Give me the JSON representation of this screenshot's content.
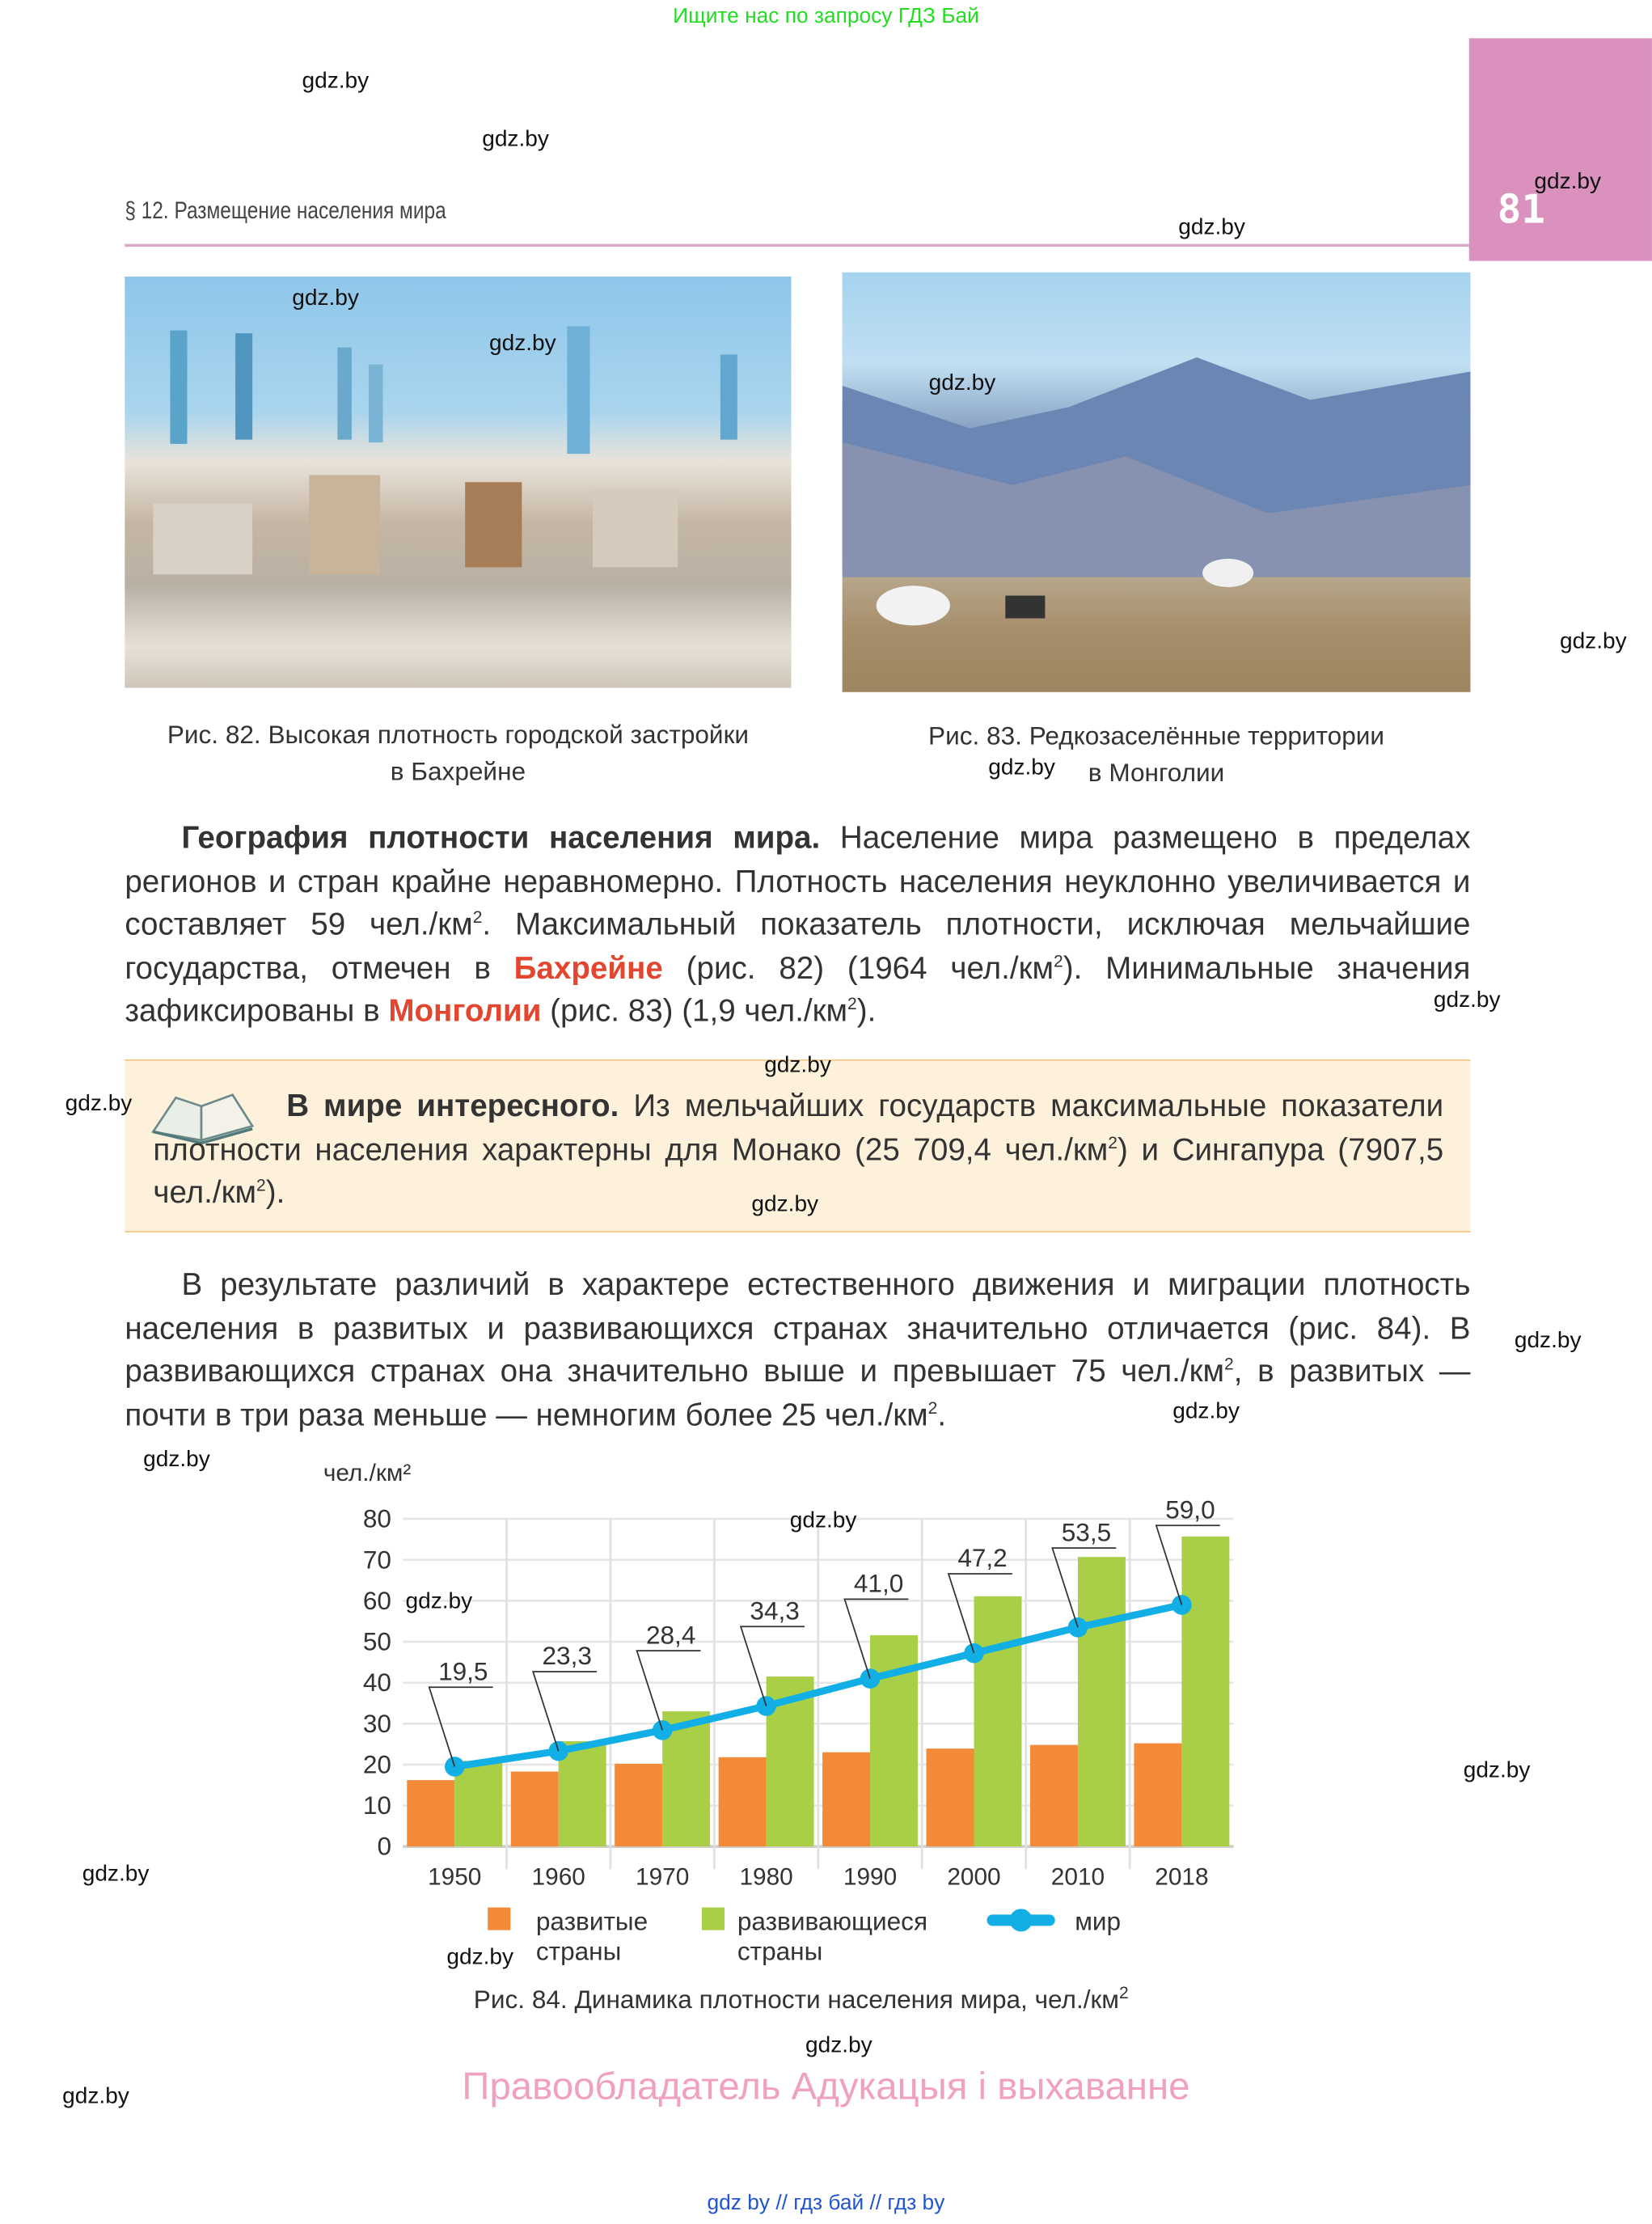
{
  "banner": "Ищите нас по запросу ГДЗ Бай",
  "header": {
    "section": "§ 12. Размещение населения мира",
    "page_number": "81"
  },
  "figures": {
    "fig82_caption_1": "Рис. 82. Высокая плотность городской застройки",
    "fig82_caption_2": "в Бахрейне",
    "fig83_caption_1": "Рис. 83. Редкозаселённые территории",
    "fig83_caption_2": "в Монголии"
  },
  "sup": "2",
  "paragraph1": {
    "heading": "География плотности населения мира.",
    "t1": " Население мира размещено в пределах регионов и стран крайне неравномерно. Плотность населения неуклонно увеличивается и составляет 59 чел./км",
    "t2": ". Максимальный показатель плотности, исключая мельчайшие государства, отмечен в ",
    "red1": "Бахрейне",
    "t3": " (рис. 82) (1964 чел./км",
    "t4": "). Минимальные значения зафиксированы в ",
    "red2": "Монголии",
    "t5": " (рис. 83) (1,9 чел./км",
    "t6": ")."
  },
  "infobox": {
    "icon": "open-book-icon",
    "heading": "В мире интересного.",
    "t1": " Из мельчайших государств максимальные показатели плотности населения характерны для Монако (25 709,4 чел./км",
    "t2": ") и Сингапура (7907,5 чел./км",
    "t3": ")."
  },
  "paragraph2": {
    "t1": "В результате различий в характере естественного движения и миграции плотность населения в развитых и развивающихся странах значительно отличается (рис. 84). В развивающихся странах она значительно выше и превышает 75 чел./км",
    "t2": ", в развитых — почти в три раза меньше — немногим более 25 чел./км",
    "t3": "."
  },
  "chart_data": {
    "type": "bar",
    "ylabel": "чел./км²",
    "ylim": [
      0,
      80
    ],
    "yticks": [
      "0",
      "10",
      "20",
      "30",
      "40",
      "50",
      "60",
      "70",
      "80"
    ],
    "categories": [
      "1950",
      "1960",
      "1970",
      "1980",
      "1990",
      "2000",
      "2010",
      "2018"
    ],
    "grid": true,
    "series": [
      {
        "name": "развитые страны",
        "type": "bar",
        "color": "#f28a38",
        "values": [
          16.2,
          18.3,
          20.2,
          21.8,
          23.0,
          23.9,
          24.8,
          25.2
        ]
      },
      {
        "name": "развивающиеся страны",
        "type": "bar",
        "color": "#a8cf45",
        "values": [
          20.9,
          25.7,
          33.0,
          41.5,
          51.6,
          61.1,
          70.7,
          75.7
        ]
      },
      {
        "name": "мир",
        "type": "line",
        "color": "#12aee6",
        "values": [
          19.5,
          23.3,
          28.4,
          34.3,
          41.0,
          47.2,
          53.5,
          59.0
        ],
        "labels": [
          "19,5",
          "23,3",
          "28,4",
          "34,3",
          "41,0",
          "47,2",
          "53,5",
          "59,0"
        ]
      }
    ],
    "legend": {
      "position": "bottom",
      "items": [
        {
          "line1": "развитые",
          "line2": "страны"
        },
        {
          "line1": "развивающиеся",
          "line2": "страны"
        },
        {
          "line1": "мир",
          "line2": ""
        }
      ]
    },
    "caption": "Рис. 84.  Динамика плотности населения мира, чел./км"
  },
  "rights": "Правообладатель Адукацыя і выхаванне",
  "footer": "gdz by  //  гдз бай  //  гдз by",
  "watermarks": [
    "gdz.by",
    "gdz.by",
    "gdz.by",
    "gdz.by",
    "gdz.by",
    "gdz.by",
    "gdz.by",
    "gdz.by",
    "gdz.by",
    "gdz.by",
    "gdz.by",
    "gdz.by",
    "gdz.by",
    "gdz.by",
    "gdz.by",
    "gdz.by",
    "gdz.by",
    "gdz.by",
    "gdz.by",
    "gdz.by",
    "gdz.by",
    "gdz.by",
    "gdz.by"
  ]
}
